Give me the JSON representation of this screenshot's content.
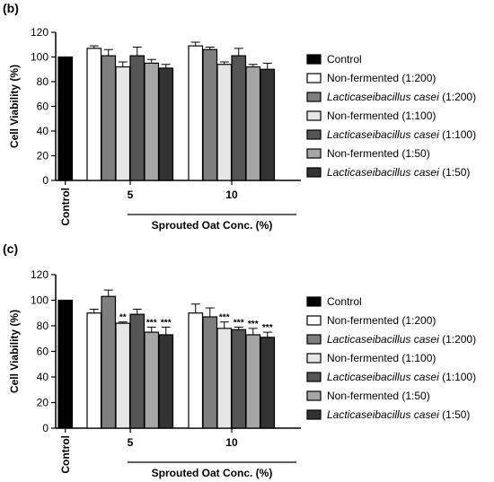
{
  "chart_data": [
    {
      "panel_label": "(b)",
      "type": "bar",
      "ylabel": "Cell Viability (%)",
      "xlabel": "Sprouted Oat Conc. (%)",
      "ylim": [
        0,
        120
      ],
      "yticks": [
        0,
        20,
        40,
        60,
        80,
        100,
        120
      ],
      "grid": false,
      "legend_position": "right",
      "groups": [
        "Control",
        "5",
        "10"
      ],
      "legend": [
        {
          "name": "Control",
          "italic": "",
          "suffix": "",
          "fill": "#000000"
        },
        {
          "name": "Non-fermented (1:200)",
          "italic": "",
          "suffix": "",
          "fill": "#ffffff"
        },
        {
          "name": "",
          "italic": "Lacticaseibacillus casei",
          "suffix": " (1:200)",
          "fill": "#7f7f7f"
        },
        {
          "name": "Non-fermented (1:100)",
          "italic": "",
          "suffix": "",
          "fill": "#e6e6e6"
        },
        {
          "name": "",
          "italic": "Lacticaseibacillus casei",
          "suffix": " (1:100)",
          "fill": "#555555"
        },
        {
          "name": "Non-fermented (1:50)",
          "italic": "",
          "suffix": "",
          "fill": "#a6a6a6"
        },
        {
          "name": "",
          "italic": "Lacticaseibacillus casei",
          "suffix": " (1:50)",
          "fill": "#333333"
        }
      ],
      "bars": [
        {
          "group": "Control",
          "series": 0,
          "value": 100,
          "error": 0,
          "sig": ""
        },
        {
          "group": "5",
          "series": 1,
          "value": 107,
          "error": 2,
          "sig": ""
        },
        {
          "group": "5",
          "series": 2,
          "value": 101,
          "error": 5,
          "sig": ""
        },
        {
          "group": "5",
          "series": 3,
          "value": 92,
          "error": 4,
          "sig": ""
        },
        {
          "group": "5",
          "series": 4,
          "value": 101,
          "error": 7,
          "sig": ""
        },
        {
          "group": "5",
          "series": 5,
          "value": 95,
          "error": 3,
          "sig": ""
        },
        {
          "group": "5",
          "series": 6,
          "value": 91,
          "error": 3,
          "sig": ""
        },
        {
          "group": "10",
          "series": 1,
          "value": 109,
          "error": 3,
          "sig": ""
        },
        {
          "group": "10",
          "series": 2,
          "value": 106,
          "error": 2,
          "sig": ""
        },
        {
          "group": "10",
          "series": 3,
          "value": 94,
          "error": 2,
          "sig": ""
        },
        {
          "group": "10",
          "series": 4,
          "value": 101,
          "error": 6,
          "sig": ""
        },
        {
          "group": "10",
          "series": 5,
          "value": 92,
          "error": 2,
          "sig": ""
        },
        {
          "group": "10",
          "series": 6,
          "value": 90,
          "error": 5,
          "sig": ""
        }
      ]
    },
    {
      "panel_label": "(c)",
      "type": "bar",
      "ylabel": "Cell Viability (%)",
      "xlabel": "Sprouted Oat Conc. (%)",
      "ylim": [
        0,
        120
      ],
      "yticks": [
        0,
        20,
        40,
        60,
        80,
        100,
        120
      ],
      "grid": false,
      "legend_position": "right",
      "groups": [
        "Control",
        "5",
        "10"
      ],
      "legend": [
        {
          "name": "Control",
          "italic": "",
          "suffix": "",
          "fill": "#000000"
        },
        {
          "name": "Non-fermented (1:200)",
          "italic": "",
          "suffix": "",
          "fill": "#ffffff"
        },
        {
          "name": "",
          "italic": "Lacticaseibacillus casei",
          "suffix": " (1:200)",
          "fill": "#7f7f7f"
        },
        {
          "name": "Non-fermented (1:100)",
          "italic": "",
          "suffix": "",
          "fill": "#e6e6e6"
        },
        {
          "name": "",
          "italic": "Lacticaseibacillus casei",
          "suffix": " (1:100)",
          "fill": "#555555"
        },
        {
          "name": "Non-fermented (1:50)",
          "italic": "",
          "suffix": "",
          "fill": "#a6a6a6"
        },
        {
          "name": "",
          "italic": "Lacticaseibacillus casei",
          "suffix": " (1:50)",
          "fill": "#333333"
        }
      ],
      "bars": [
        {
          "group": "Control",
          "series": 0,
          "value": 100,
          "error": 0,
          "sig": ""
        },
        {
          "group": "5",
          "series": 1,
          "value": 90,
          "error": 3,
          "sig": ""
        },
        {
          "group": "5",
          "series": 2,
          "value": 103,
          "error": 5,
          "sig": ""
        },
        {
          "group": "5",
          "series": 3,
          "value": 82,
          "error": 1,
          "sig": "**"
        },
        {
          "group": "5",
          "series": 4,
          "value": 89,
          "error": 4,
          "sig": ""
        },
        {
          "group": "5",
          "series": 5,
          "value": 75,
          "error": 4,
          "sig": "***"
        },
        {
          "group": "5",
          "series": 6,
          "value": 73,
          "error": 6,
          "sig": "***"
        },
        {
          "group": "10",
          "series": 1,
          "value": 90,
          "error": 7,
          "sig": ""
        },
        {
          "group": "10",
          "series": 2,
          "value": 87,
          "error": 7,
          "sig": ""
        },
        {
          "group": "10",
          "series": 3,
          "value": 78,
          "error": 5,
          "sig": "***"
        },
        {
          "group": "10",
          "series": 4,
          "value": 77,
          "error": 2,
          "sig": "***"
        },
        {
          "group": "10",
          "series": 5,
          "value": 73,
          "error": 5,
          "sig": "***"
        },
        {
          "group": "10",
          "series": 6,
          "value": 71,
          "error": 4,
          "sig": "***"
        }
      ]
    }
  ]
}
